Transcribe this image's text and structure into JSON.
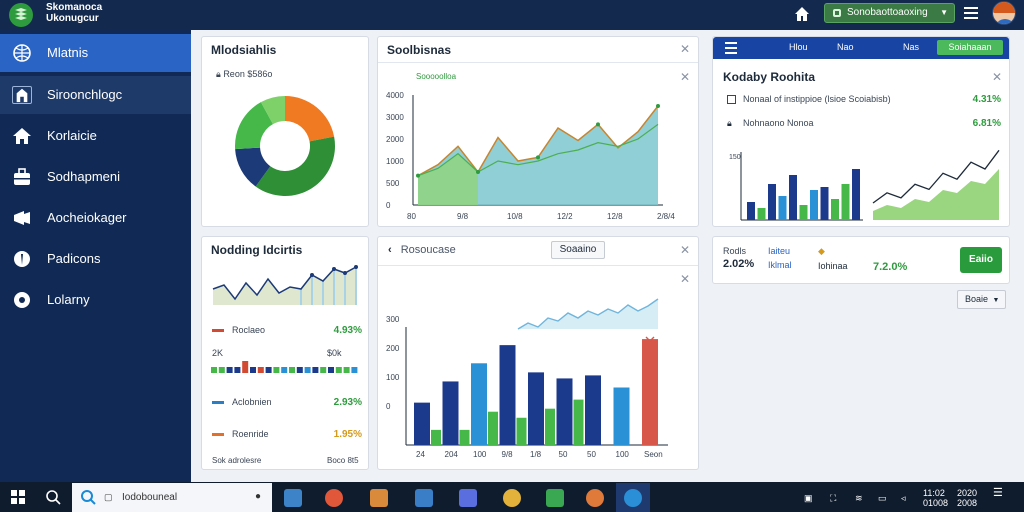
{
  "header": {
    "brand_line1": "Skomanoca",
    "brand_line2": "Ukonugcur",
    "env_label": "Sonobaottoaoxing",
    "home_icon": "home-icon",
    "menu_icon": "hamburger-icon"
  },
  "sidebar": {
    "items": [
      {
        "label": "Mlatnis",
        "icon": "globe-icon"
      },
      {
        "label": "Siroonchlogc",
        "icon": "building-icon"
      },
      {
        "label": "Korlaicie",
        "icon": "home-icon"
      },
      {
        "label": "Sodhapmeni",
        "icon": "briefcase-icon"
      },
      {
        "label": "Aocheiokager",
        "icon": "megaphone-icon"
      },
      {
        "label": "Padicons",
        "icon": "leaf-icon"
      },
      {
        "label": "Lolarny",
        "icon": "compass-icon"
      }
    ]
  },
  "cards": {
    "donut": {
      "title": "Mlodsiahlis",
      "meta": "Reon $586o",
      "slices": [
        {
          "value": 22,
          "color": "#f07a21"
        },
        {
          "value": 38,
          "color": "#2e8f36"
        },
        {
          "value": 14,
          "color": "#1c3a78"
        },
        {
          "value": 18,
          "color": "#46b84a"
        },
        {
          "value": 8,
          "color": "#7ed069"
        }
      ]
    },
    "area": {
      "title": "Soolbisnas",
      "legend": "Sooooolloa",
      "yticks": [
        "4000",
        "3000",
        "2000",
        "1000",
        "500",
        "0"
      ],
      "xticks": [
        "80",
        "9/8",
        "10/8",
        "12/2",
        "12/8",
        "2/8/4"
      ],
      "values": [
        40,
        55,
        80,
        45,
        92,
        60,
        65,
        105,
        88,
        110,
        78,
        100,
        135
      ],
      "secondary": [
        40,
        50,
        70,
        45,
        60,
        55,
        60,
        70,
        75,
        85,
        80,
        90,
        110
      ]
    },
    "trend": {
      "title": "Nodding Idcirtis",
      "rows": [
        {
          "label": "Roclaeo",
          "value": "4.93%",
          "color": "#d24a32"
        },
        {
          "label": "Aclobnien",
          "value": "2.93%",
          "color": "#2a7fc4"
        },
        {
          "label": "Roenride",
          "value": "1.95%",
          "color": "#e2702b"
        }
      ],
      "range_left": "2K",
      "range_right": "$0k",
      "footer_left": "Sok adrolesre",
      "footer_right": "Boco 8t5"
    },
    "bars": {
      "back_label": "Rosoucase",
      "button": "Soaaino",
      "yticks": [
        "300",
        "200",
        "100",
        "0"
      ],
      "xticks": [
        "24",
        "204",
        "100",
        "9/8",
        "1/8",
        "50",
        "50",
        "100",
        "Seon"
      ],
      "groups": [
        {
          "values": [
            70,
            25
          ],
          "colors": [
            "#1c3a8c",
            "#46b84a"
          ]
        },
        {
          "values": [
            105,
            25
          ],
          "colors": [
            "#1c3a8c",
            "#46b84a"
          ]
        },
        {
          "values": [
            135,
            55
          ],
          "colors": [
            "#2a91d6",
            "#46b84a"
          ]
        },
        {
          "values": [
            165,
            45
          ],
          "colors": [
            "#1c3a8c",
            "#46b84a"
          ]
        },
        {
          "values": [
            120,
            60
          ],
          "colors": [
            "#1c3a8c",
            "#46b84a"
          ]
        },
        {
          "values": [
            110,
            75
          ],
          "colors": [
            "#1c3a8c",
            "#46b84a"
          ]
        },
        {
          "values": [
            115,
            0
          ],
          "colors": [
            "#1c3a8c",
            "#46b84a"
          ]
        },
        {
          "values": [
            95,
            0
          ],
          "colors": [
            "#2a91d6",
            "#46b84a"
          ]
        },
        {
          "values": [
            175,
            0
          ],
          "colors": [
            "#d7574a",
            "#46b84a"
          ]
        }
      ]
    },
    "kpi": {
      "tabs": [
        "Hlou",
        "Nao",
        "Nas"
      ],
      "cta": "Soiahaaan",
      "title": "Kodaby Roohita",
      "rows": [
        {
          "label": "Nonaal of instippioe (lsioe Scoiabisb)",
          "value": "4.31%"
        },
        {
          "label": "Nohnaono Nonoa",
          "value": "6.81%"
        }
      ],
      "ytick": "150",
      "bars": [
        {
          "value": 30,
          "color": "#1c3a8c"
        },
        {
          "value": 20,
          "color": "#46b84a"
        },
        {
          "value": 60,
          "color": "#1c3a8c"
        },
        {
          "value": 40,
          "color": "#2a91d6"
        },
        {
          "value": 75,
          "color": "#1c3a8c"
        },
        {
          "value": 25,
          "color": "#46b84a"
        },
        {
          "value": 50,
          "color": "#2a91d6"
        },
        {
          "value": 55,
          "color": "#1c3a8c"
        },
        {
          "value": 35,
          "color": "#46b84a"
        },
        {
          "value": 60,
          "color": "#46b84a"
        },
        {
          "value": 85,
          "color": "#1c3a8c"
        }
      ],
      "trend": [
        10,
        20,
        15,
        30,
        25,
        45,
        40,
        60,
        55,
        80
      ]
    },
    "stats": {
      "items": [
        {
          "label": "Rodls",
          "value": "2.02%"
        },
        {
          "label": "Iaiteu",
          "value": "Iklmal"
        },
        {
          "label": "",
          "value": "Iohinaa"
        }
      ],
      "main": "7.2.0%",
      "button": "Eaiio",
      "dropdown": "Boaie"
    }
  },
  "taskbar": {
    "search": "Iodobouneal",
    "time": "11:02",
    "date": "01008",
    "time2": "2020",
    "date2": "2008"
  }
}
